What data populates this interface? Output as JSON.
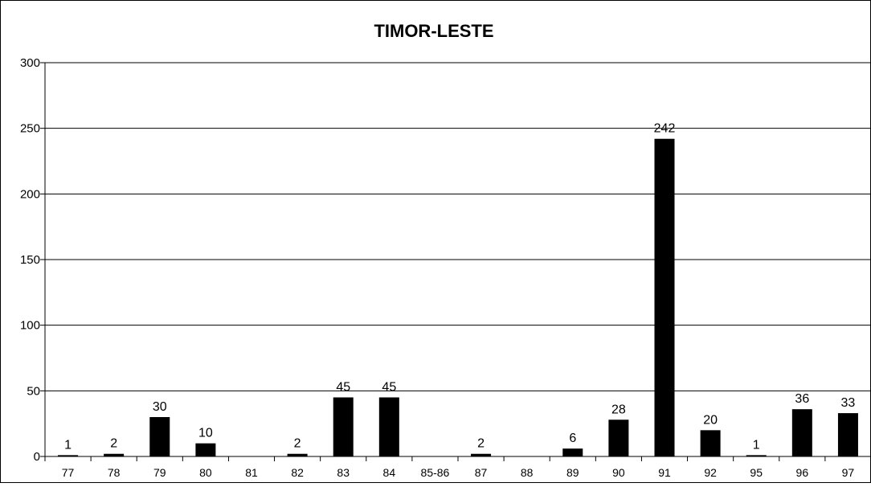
{
  "chart_data": {
    "type": "bar",
    "title": "TIMOR-LESTE",
    "xlabel": "",
    "ylabel": "",
    "categories": [
      "77",
      "78",
      "79",
      "80",
      "81",
      "82",
      "83",
      "84",
      "85-86",
      "87",
      "88",
      "89",
      "90",
      "91",
      "92",
      "95",
      "96",
      "97"
    ],
    "values": [
      1,
      2,
      30,
      10,
      0,
      2,
      45,
      45,
      0,
      2,
      0,
      6,
      28,
      242,
      20,
      1,
      36,
      33
    ],
    "value_labels": [
      "1",
      "2",
      "30",
      "10",
      "",
      "2",
      "45",
      "45",
      "",
      "2",
      "",
      "6",
      "28",
      "242",
      "20",
      "1",
      "36",
      "33"
    ],
    "ylim": [
      0,
      300
    ],
    "yticks": [
      0,
      50,
      100,
      150,
      200,
      250,
      300
    ],
    "grid": true,
    "legend": "none",
    "bar_color": "#000000"
  }
}
